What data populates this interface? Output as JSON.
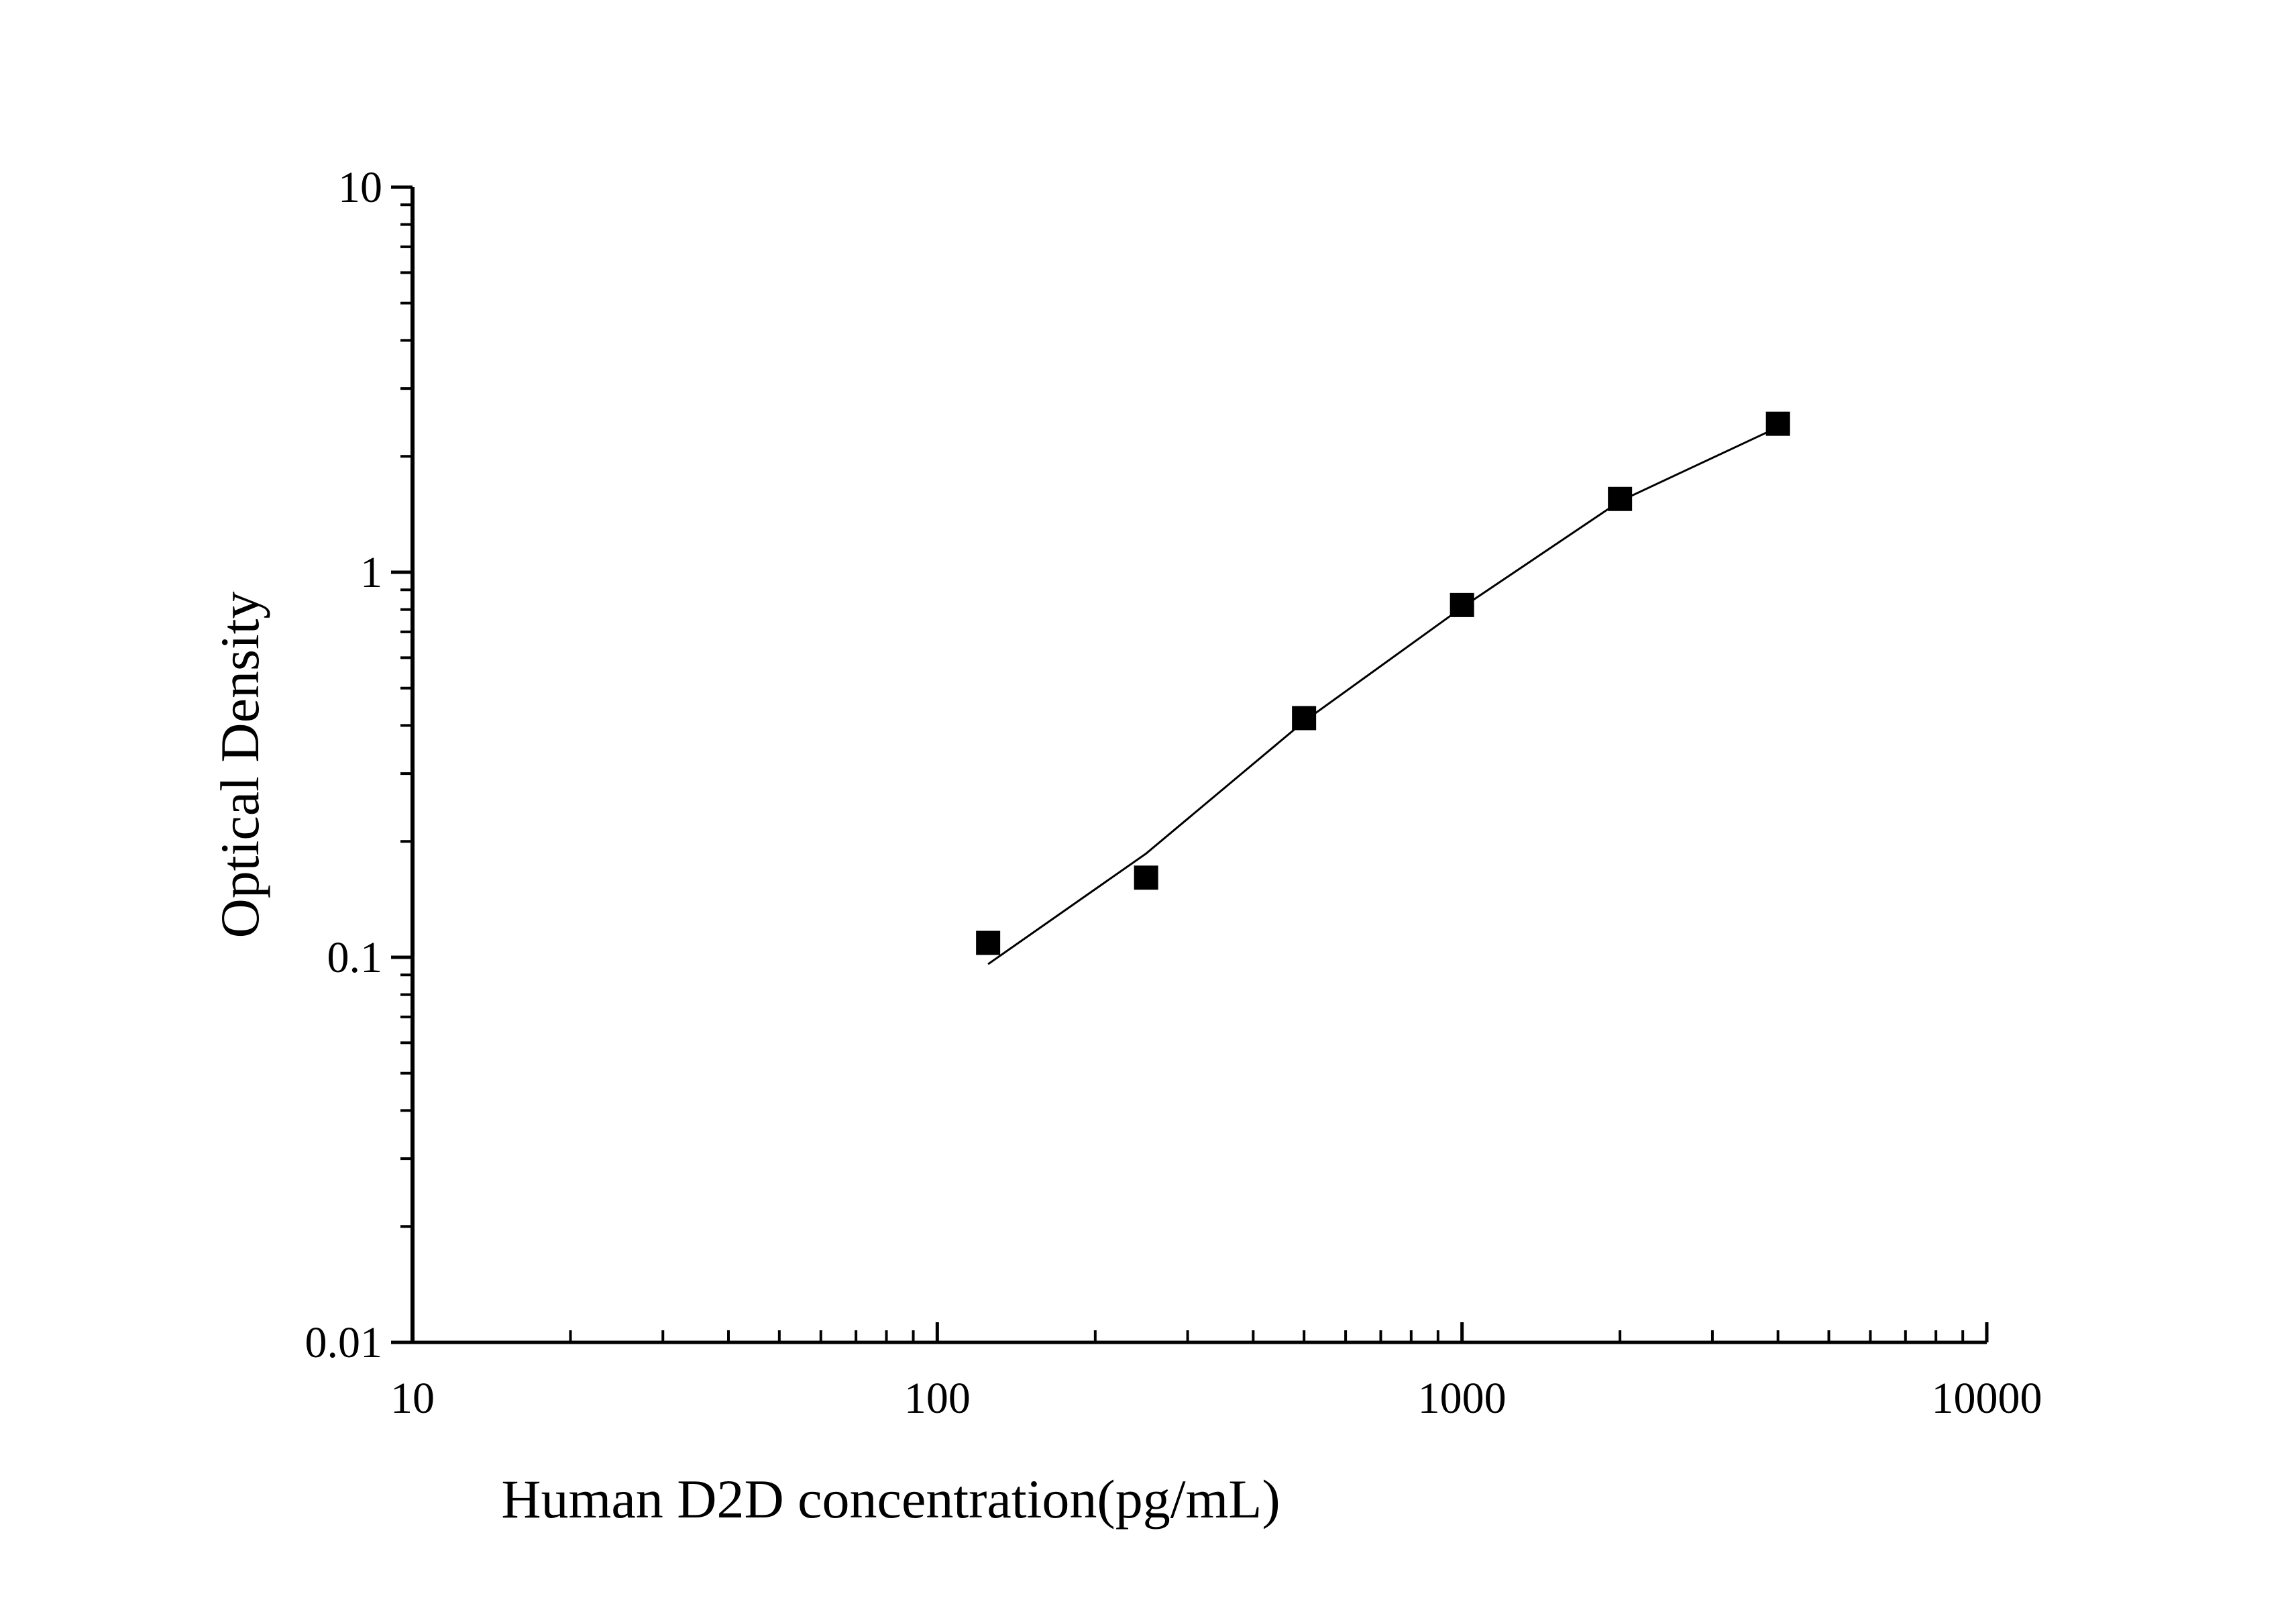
{
  "chart_data": {
    "type": "scatter",
    "title": "",
    "xlabel": "Human D2D concentration(pg/mL)",
    "ylabel": "Optical Density",
    "x_scale": "log",
    "y_scale": "log",
    "xlim": [
      10,
      10000
    ],
    "ylim": [
      0.01,
      10
    ],
    "x_ticks": [
      "10",
      "100",
      "1000",
      "10000"
    ],
    "y_ticks": [
      "0.01",
      "0.1",
      "1",
      "10"
    ],
    "grid": false,
    "marker": "square",
    "color": "#000000",
    "points": {
      "x": [
        125,
        250,
        500,
        1000,
        2000,
        4000
      ],
      "y": [
        0.109,
        0.161,
        0.418,
        0.822,
        1.55,
        2.43
      ]
    },
    "fit_curve": {
      "x": [
        125,
        250,
        500,
        1000,
        2000,
        4000
      ],
      "y": [
        0.096,
        0.186,
        0.41,
        0.81,
        1.53,
        2.38
      ]
    }
  }
}
